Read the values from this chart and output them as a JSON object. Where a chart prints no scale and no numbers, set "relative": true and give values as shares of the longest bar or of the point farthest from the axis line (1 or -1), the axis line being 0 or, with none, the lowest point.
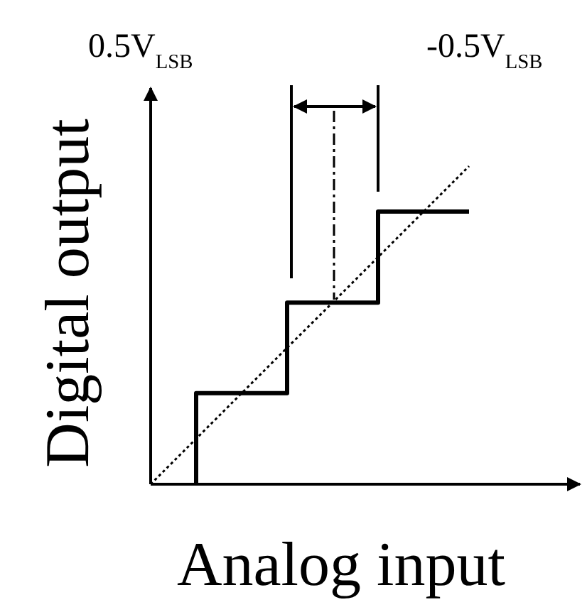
{
  "chart_data": {
    "type": "step",
    "xlabel": "Analog input",
    "ylabel": "Digital output",
    "relative": true,
    "categories": [
      null,
      null,
      null,
      null,
      null,
      null,
      null,
      null
    ],
    "series": [
      {
        "color": "#000000",
        "values": [
          null,
          0,
          0.286,
          0.286,
          0.571,
          0.571,
          0.857,
          0.857
        ],
        "line_style": "solid"
      },
      {
        "type": "line",
        "color": "#000000",
        "values": [
          0,
          0.143,
          0.286,
          0.429,
          0.571,
          0.714,
          0.857,
          1
        ],
        "line_style": "dotted"
      }
    ],
    "annotations": [
      "0.5V$_{LSB}$",
      "-0.5V$_{LSB}$"
    ]
  }
}
